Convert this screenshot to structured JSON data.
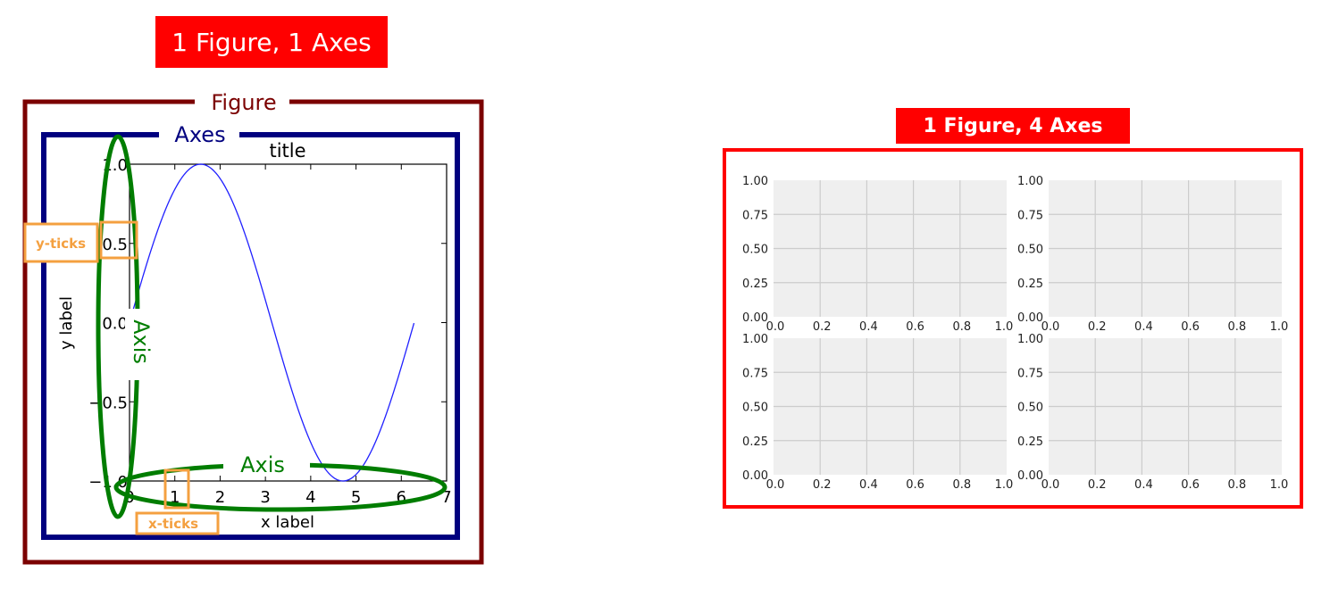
{
  "left_diagram": {
    "banner": "1 Figure, 1 Axes",
    "figure_label": "Figure",
    "axes_label": "Axes",
    "axis_label_y": "Axis",
    "axis_label_x": "Axis",
    "yticks_label": "y-ticks",
    "xticks_label": "x-ticks",
    "colors": {
      "figure": "#7b0000",
      "axes": "#00007f",
      "axis": "#007d00",
      "ticks": "#f4a040",
      "line": "#2020ff"
    }
  },
  "right_diagram": {
    "banner": "1 Figure, 4 Axes",
    "colors": {
      "border": "#ff0000",
      "panel_bg": "#efefef",
      "grid": "#cccccc"
    }
  },
  "chart_data": [
    {
      "type": "line",
      "title": "title",
      "xlabel": "x label",
      "ylabel": "y label",
      "xlim": [
        0,
        7
      ],
      "ylim": [
        -1.0,
        1.0
      ],
      "x_ticks": [
        "0",
        "1",
        "2",
        "3",
        "4",
        "5",
        "6",
        "7"
      ],
      "y_ticks": [
        "−1.0",
        "−0.5",
        "0.0",
        "0.5",
        "1.0"
      ],
      "series": [
        {
          "function": "sin(x)",
          "x_range": [
            0,
            6.28
          ]
        }
      ]
    },
    {
      "type": "line",
      "layout": "2x2 empty subplots",
      "xlim": [
        0.0,
        1.0
      ],
      "ylim": [
        0.0,
        1.0
      ],
      "x_ticks": [
        "0.0",
        "0.2",
        "0.4",
        "0.6",
        "0.8",
        "1.0"
      ],
      "y_ticks": [
        "0.00",
        "0.25",
        "0.50",
        "0.75",
        "1.00"
      ],
      "grid": true,
      "panels": 4
    }
  ]
}
